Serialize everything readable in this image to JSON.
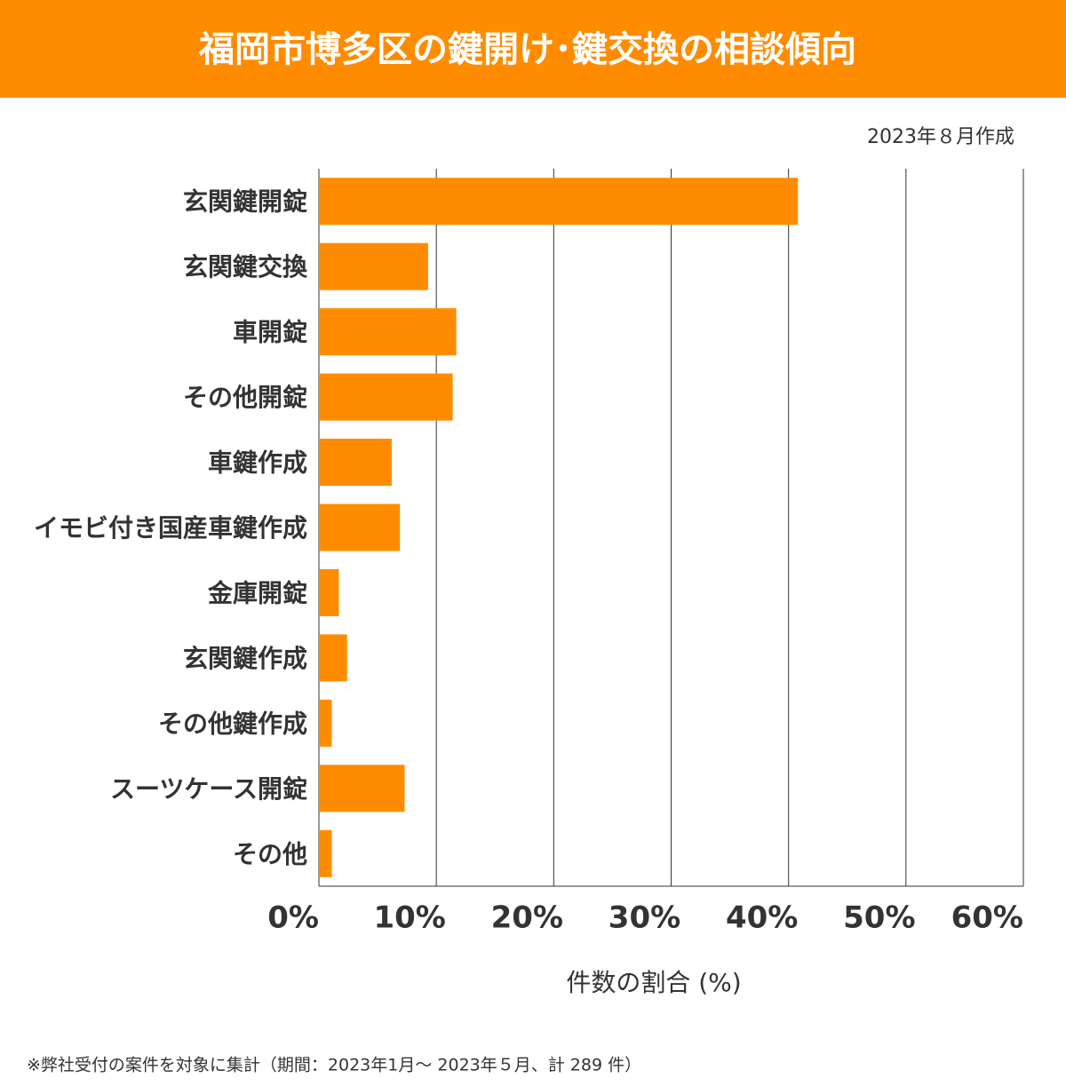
{
  "chart_data": {
    "type": "bar",
    "orientation": "horizontal",
    "title": "福岡市博多区の鍵開け･鍵交換の相談傾向",
    "subtitle": "2023年８月作成",
    "x_label": "件数の割合 (%)",
    "note": "※弊社受付の案件を対象に集計（期間：2023年1月～ 2023年５月、計 289 件）",
    "categories": [
      "玄関鍵開錠",
      "玄関鍵交換",
      "車開錠",
      "その他開錠",
      "車鍵作成",
      "イモビ付き国産車鍵作成",
      "金庫開錠",
      "玄関鍵作成",
      "その他鍵作成",
      "スーツケース開錠",
      "その他"
    ],
    "values": [
      40.8,
      9.3,
      11.7,
      11.4,
      6.2,
      6.9,
      1.7,
      2.4,
      1.1,
      7.3,
      1.1
    ],
    "color": "#ff8c00",
    "xlim": [
      0,
      60
    ],
    "xticks": [
      {
        "value": 0,
        "label": "0%"
      },
      {
        "value": 10,
        "label": "10%"
      },
      {
        "value": 20,
        "label": "20%"
      },
      {
        "value": 30,
        "label": "30%"
      },
      {
        "value": 40,
        "label": "40%"
      },
      {
        "value": 50,
        "label": "50%"
      },
      {
        "value": 60,
        "label": "60%"
      }
    ],
    "grid": true
  }
}
